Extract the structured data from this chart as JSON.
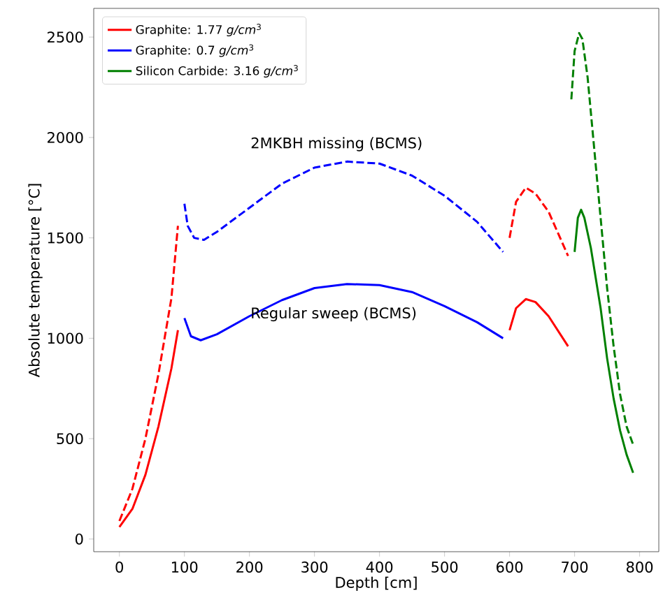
{
  "chart_data": {
    "type": "line",
    "xlabel": "Depth [cm]",
    "ylabel": "Absolute temperature [°C]",
    "xlim": [
      -39.5,
      829.5
    ],
    "ylim": [
      -63,
      2643
    ],
    "xticks": [
      0,
      100,
      200,
      300,
      400,
      500,
      600,
      700,
      800
    ],
    "yticks": [
      0,
      500,
      1000,
      1500,
      2000,
      2500
    ],
    "legend": "top left",
    "annotations": [
      "2MKBH missing (BCMS)",
      "Regular sweep (BCMS)"
    ],
    "series": [
      {
        "name": "Graphite: 1.77 *g/cm*$^{3}$",
        "color": "#ff0000",
        "line_style": "solid",
        "x": [
          0,
          20,
          40,
          60,
          80,
          90,
          345,
          600,
          610,
          625,
          640,
          660,
          690
        ],
        "values": [
          60,
          150,
          320,
          560,
          850,
          1040,
          null,
          1040,
          1150,
          1195,
          1180,
          1110,
          960
        ]
      },
      {
        "name": "Graphite: 0.7 *g/cm*$^{3}$",
        "color": "#0000ff",
        "line_style": "solid",
        "x": [
          100,
          110,
          125,
          150,
          200,
          250,
          300,
          350,
          400,
          450,
          500,
          550,
          590
        ],
        "values": [
          1100,
          1010,
          990,
          1020,
          1110,
          1190,
          1250,
          1270,
          1265,
          1230,
          1160,
          1080,
          1000
        ]
      },
      {
        "name": "Silicon Carbide: 3.16 *g/cm*$^{3}$",
        "color": "#008000",
        "line_style": "solid",
        "x": [
          700,
          705,
          710,
          715,
          725,
          740,
          750,
          760,
          770,
          780,
          790
        ],
        "values": [
          1430,
          1600,
          1640,
          1600,
          1450,
          1150,
          900,
          700,
          540,
          420,
          330
        ]
      },
      {
        "color": "#ff0000",
        "line_style": "dashed",
        "x": [
          0,
          20,
          40,
          60,
          80,
          90,
          345,
          600,
          610,
          625,
          640,
          660,
          690
        ],
        "values": [
          90,
          250,
          500,
          820,
          1200,
          1560,
          null,
          1500,
          1680,
          1750,
          1720,
          1630,
          1410
        ]
      },
      {
        "color": "#0000ff",
        "line_style": "dashed",
        "x": [
          100,
          105,
          115,
          130,
          150,
          200,
          250,
          300,
          350,
          400,
          450,
          500,
          550,
          590
        ],
        "values": [
          1670,
          1560,
          1500,
          1490,
          1530,
          1650,
          1770,
          1850,
          1880,
          1870,
          1810,
          1710,
          1580,
          1430
        ]
      },
      {
        "color": "#008000",
        "line_style": "dashed",
        "x": [
          695,
          700,
          707,
          712,
          720,
          730,
          740,
          750,
          760,
          770,
          780,
          790
        ],
        "values": [
          2190,
          2430,
          2520,
          2490,
          2300,
          1950,
          1600,
          1250,
          960,
          720,
          560,
          470
        ]
      }
    ]
  }
}
